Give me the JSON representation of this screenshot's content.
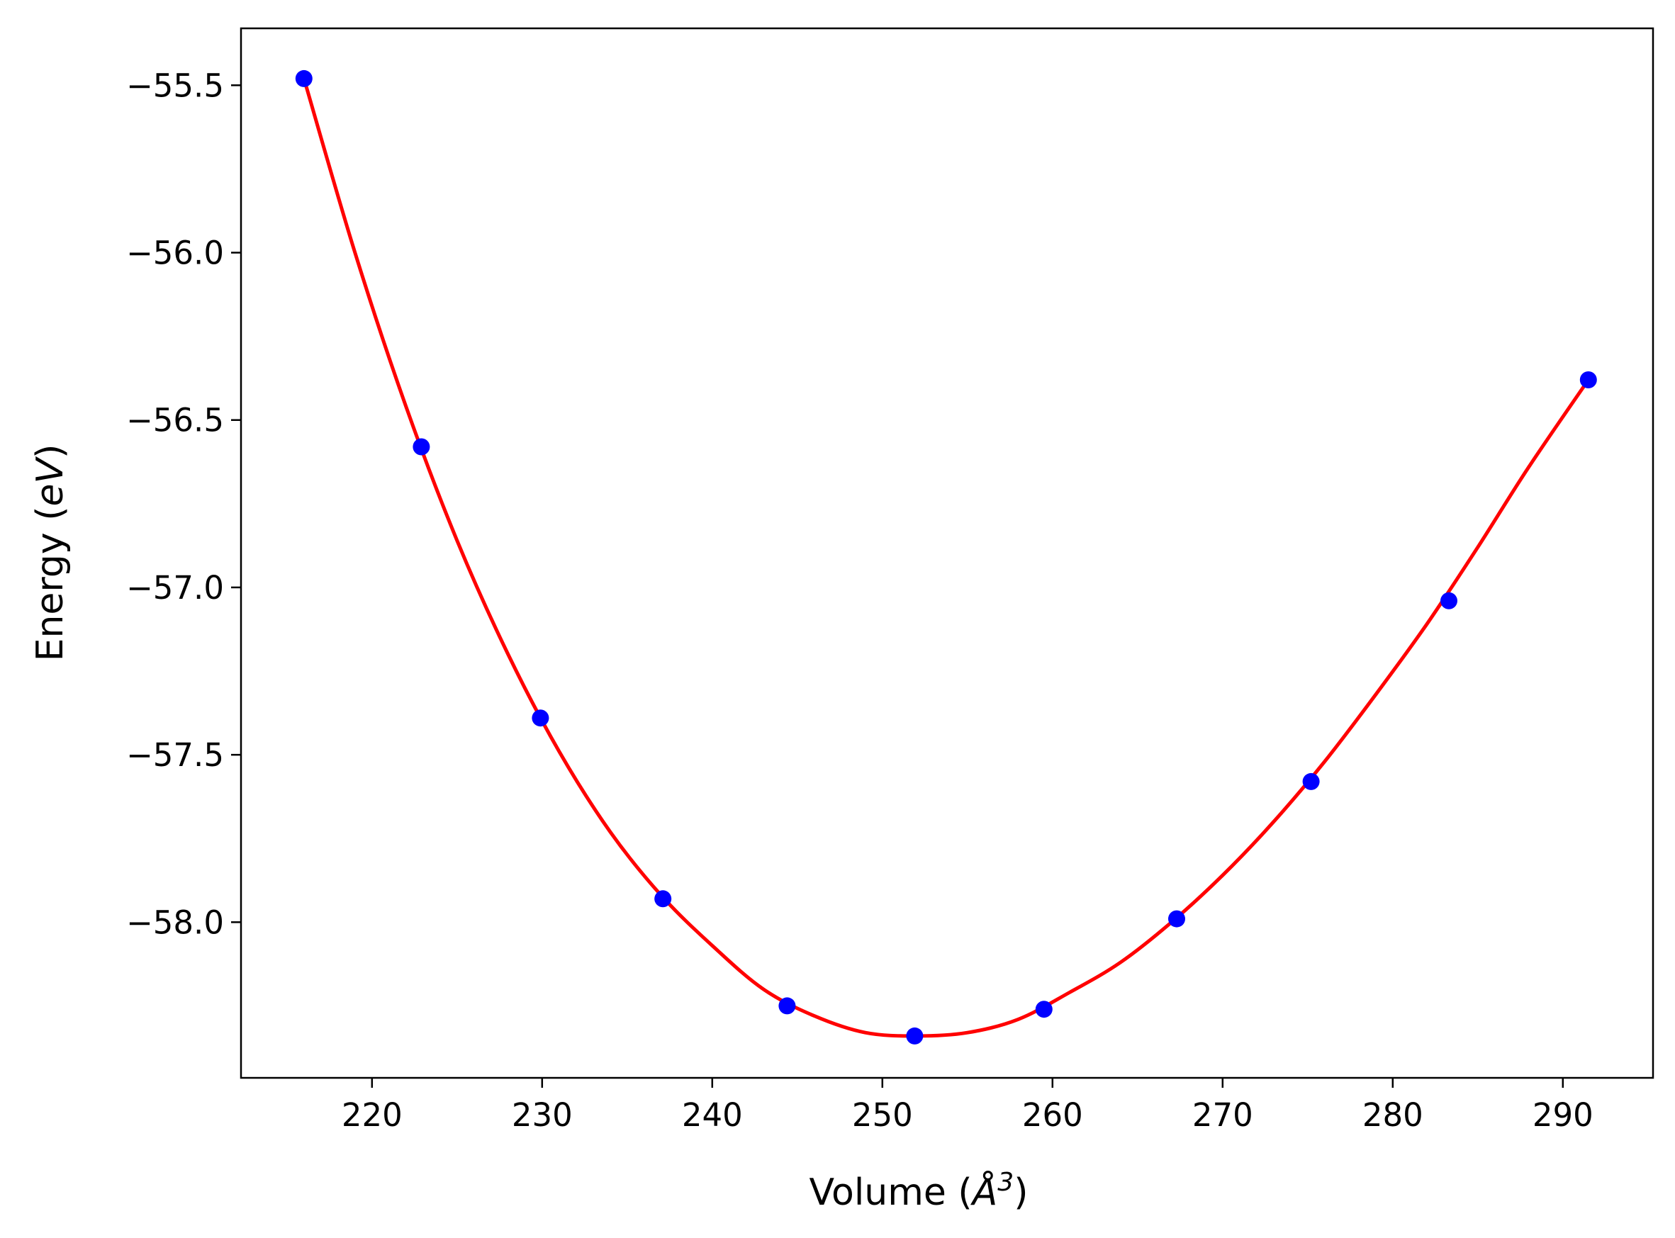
{
  "chart_data": {
    "type": "scatter",
    "title": "",
    "xlabel_parts": {
      "prefix": "Volume (",
      "unit": "Å",
      "exponent": "3",
      "suffix": ")"
    },
    "ylabel_parts": {
      "prefix": "Energy (",
      "unit": "eV",
      "suffix": ")"
    },
    "xlim": [
      212.3,
      295.3
    ],
    "ylim": [
      -58.465,
      -55.33
    ],
    "x_ticks": [
      220,
      230,
      240,
      250,
      260,
      270,
      280,
      290
    ],
    "x_tick_labels": [
      "220",
      "230",
      "240",
      "250",
      "260",
      "270",
      "280",
      "290"
    ],
    "y_ticks": [
      -55.5,
      -56.0,
      -56.5,
      -57.0,
      -57.5,
      -58.0
    ],
    "y_tick_labels": [
      "−55.5",
      "−56.0",
      "−56.5",
      "−57.0",
      "−57.5",
      "−58.0"
    ],
    "grid": false,
    "legend": "none",
    "series": [
      {
        "kind": "points",
        "color": "#0000ff",
        "x": [
          216.0,
          222.9,
          229.9,
          237.1,
          244.4,
          251.9,
          259.5,
          267.3,
          275.2,
          283.3,
          291.5
        ],
        "y": [
          -55.48,
          -56.58,
          -57.39,
          -57.93,
          -58.25,
          -58.34,
          -58.26,
          -57.99,
          -57.58,
          -57.04,
          -56.38
        ]
      },
      {
        "kind": "fit-curve",
        "color": "#ff0000",
        "x": [
          216.0,
          219.0,
          222.0,
          225.0,
          228.0,
          231.0,
          234.0,
          237.0,
          240.0,
          243.0,
          246.0,
          249.0,
          252.0,
          255.0,
          258.0,
          261.0,
          264.0,
          267.0,
          270.0,
          273.0,
          276.0,
          279.0,
          282.0,
          285.0,
          288.0,
          291.5
        ],
        "y": [
          -55.48,
          -56.0,
          -56.46,
          -56.86,
          -57.2,
          -57.49,
          -57.73,
          -57.92,
          -58.07,
          -58.2,
          -58.28,
          -58.33,
          -58.34,
          -58.33,
          -58.29,
          -58.21,
          -58.12,
          -58.0,
          -57.86,
          -57.7,
          -57.52,
          -57.32,
          -57.11,
          -56.88,
          -56.64,
          -56.38
        ]
      }
    ]
  }
}
